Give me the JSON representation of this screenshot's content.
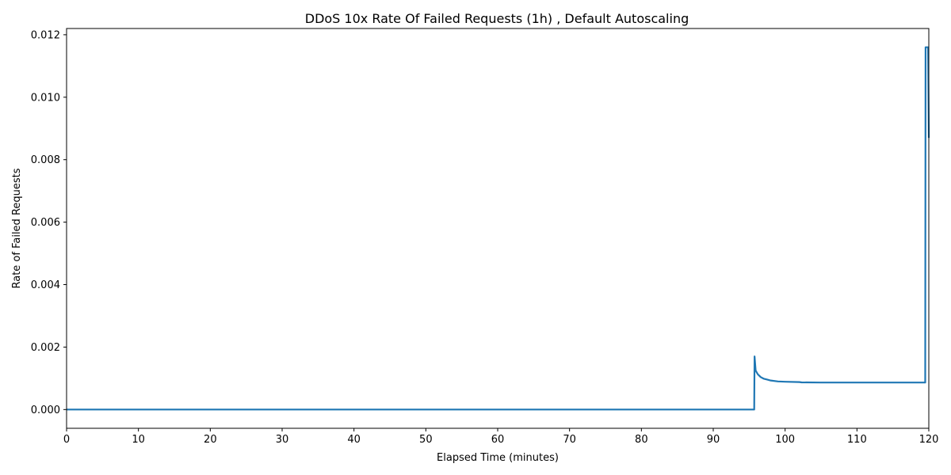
{
  "chart_data": {
    "type": "line",
    "title": "DDoS 10x Rate Of Failed Requests (1h) , Default Autoscaling",
    "xlabel": "Elapsed Time (minutes)",
    "ylabel": "Rate of Failed Requests",
    "xlim": [
      0,
      120
    ],
    "ylim": [
      -0.0006,
      0.0122
    ],
    "xticks": [
      0,
      10,
      20,
      30,
      40,
      50,
      60,
      70,
      80,
      90,
      100,
      110,
      120
    ],
    "xtick_labels": [
      "0",
      "10",
      "20",
      "30",
      "40",
      "50",
      "60",
      "70",
      "80",
      "90",
      "100",
      "110",
      "120"
    ],
    "yticks": [
      0.0,
      0.002,
      0.004,
      0.006,
      0.008,
      0.01,
      0.012
    ],
    "ytick_labels": [
      "0.000",
      "0.002",
      "0.004",
      "0.006",
      "0.008",
      "0.010",
      "0.012"
    ],
    "grid": false,
    "line_color": "#1f77b4",
    "series": [
      {
        "x": [
          0,
          95.7,
          95.75,
          95.9,
          96.2,
          96.6,
          97.0,
          97.5,
          98.0,
          99.0,
          100.0,
          102.0,
          102.3,
          105.0,
          110.0,
          115.0,
          119.5,
          119.55,
          119.7,
          119.9,
          120.0
        ],
        "y": [
          0.0,
          0.0,
          0.0017,
          0.00125,
          0.00113,
          0.00104,
          0.00099,
          0.00096,
          0.00093,
          0.0009,
          0.00089,
          0.00088,
          0.00087,
          0.000865,
          0.000865,
          0.000865,
          0.000865,
          0.0116,
          0.0116,
          0.0116,
          0.0087
        ]
      }
    ]
  }
}
